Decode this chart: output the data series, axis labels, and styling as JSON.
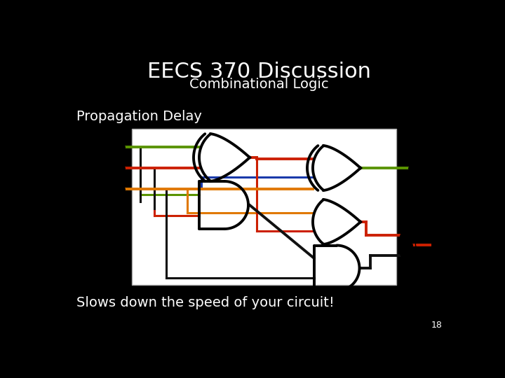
{
  "background_color": "#000000",
  "title": "EECS 370 Discussion",
  "title_color": "#ffffff",
  "title_fontsize": 22,
  "subtitle": "Combinational Logic",
  "subtitle_color": "#ffffff",
  "subtitle_fontsize": 14,
  "heading": "Propagation Delay",
  "heading_color": "#ffffff",
  "heading_fontsize": 14,
  "footer_text": "Slows down the speed of your circuit!",
  "footer_color": "#ffffff",
  "footer_fontsize": 14,
  "page_number": "18",
  "page_number_color": "#ffffff",
  "page_number_fontsize": 9,
  "circuit_bg": "#ffffff",
  "col_green": "#5a9400",
  "col_red": "#cc2000",
  "col_blue": "#1a3aaa",
  "col_orange": "#e07800",
  "col_black": "#111111"
}
